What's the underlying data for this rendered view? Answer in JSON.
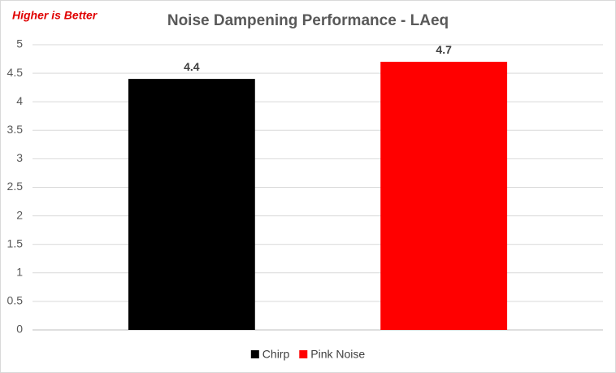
{
  "chart_data": {
    "type": "bar",
    "title": "Noise Dampening Performance - LAeq",
    "annotation": "Higher is Better",
    "categories": [
      null
    ],
    "series": [
      {
        "name": "Chirp",
        "color": "#000000",
        "values": [
          4.4
        ]
      },
      {
        "name": "Pink Noise",
        "color": "#ff0000",
        "values": [
          4.7
        ]
      }
    ],
    "ylim": [
      0,
      5
    ],
    "yticks": [
      0,
      0.5,
      1,
      1.5,
      2,
      2.5,
      3,
      3.5,
      4,
      4.5,
      5
    ],
    "grid": true,
    "legend": "bottom"
  }
}
